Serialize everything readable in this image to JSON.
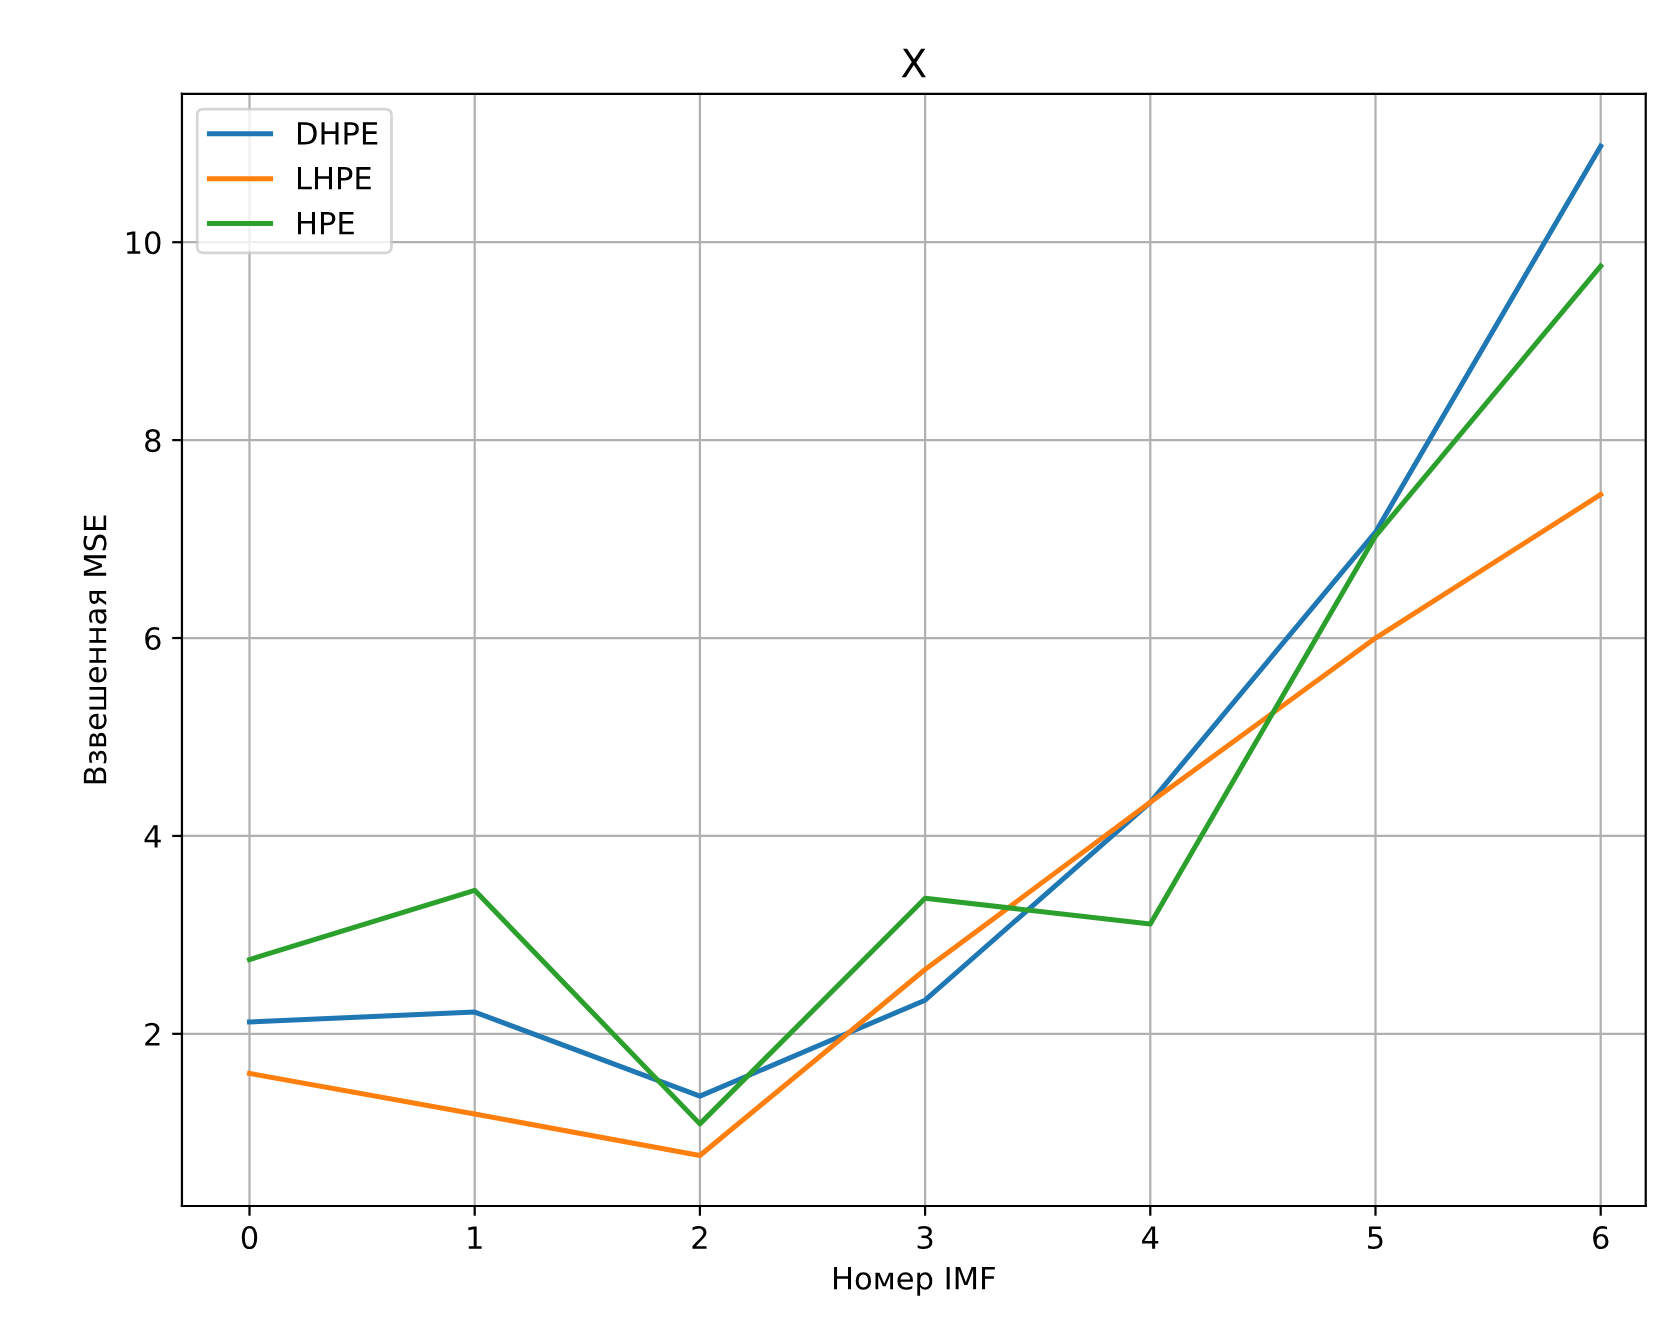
{
  "chart_data": {
    "type": "line",
    "title": "X",
    "xlabel": "Номер IMF",
    "ylabel": "Взвешенная MSE",
    "x": [
      0,
      1,
      2,
      3,
      4,
      5,
      6
    ],
    "series": [
      {
        "name": "DHPE",
        "color": "#1f77b4",
        "values": [
          2.12,
          2.22,
          1.37,
          2.34,
          4.34,
          7.07,
          10.97
        ]
      },
      {
        "name": "LHPE",
        "color": "#ff7f0e",
        "values": [
          1.6,
          1.19,
          0.77,
          2.65,
          4.34,
          6.0,
          7.45
        ]
      },
      {
        "name": "HPE",
        "color": "#2ca02c",
        "values": [
          2.75,
          3.45,
          1.09,
          3.37,
          3.11,
          7.03,
          9.76
        ]
      }
    ],
    "xlim": [
      -0.3,
      6.2
    ],
    "ylim": [
      0.26,
      11.5
    ],
    "xticks": [
      0,
      1,
      2,
      3,
      4,
      5,
      6
    ],
    "yticks": [
      2,
      4,
      6,
      8,
      10
    ],
    "grid": true,
    "legend": "top left",
    "marker": "none",
    "line_style": "solid"
  }
}
